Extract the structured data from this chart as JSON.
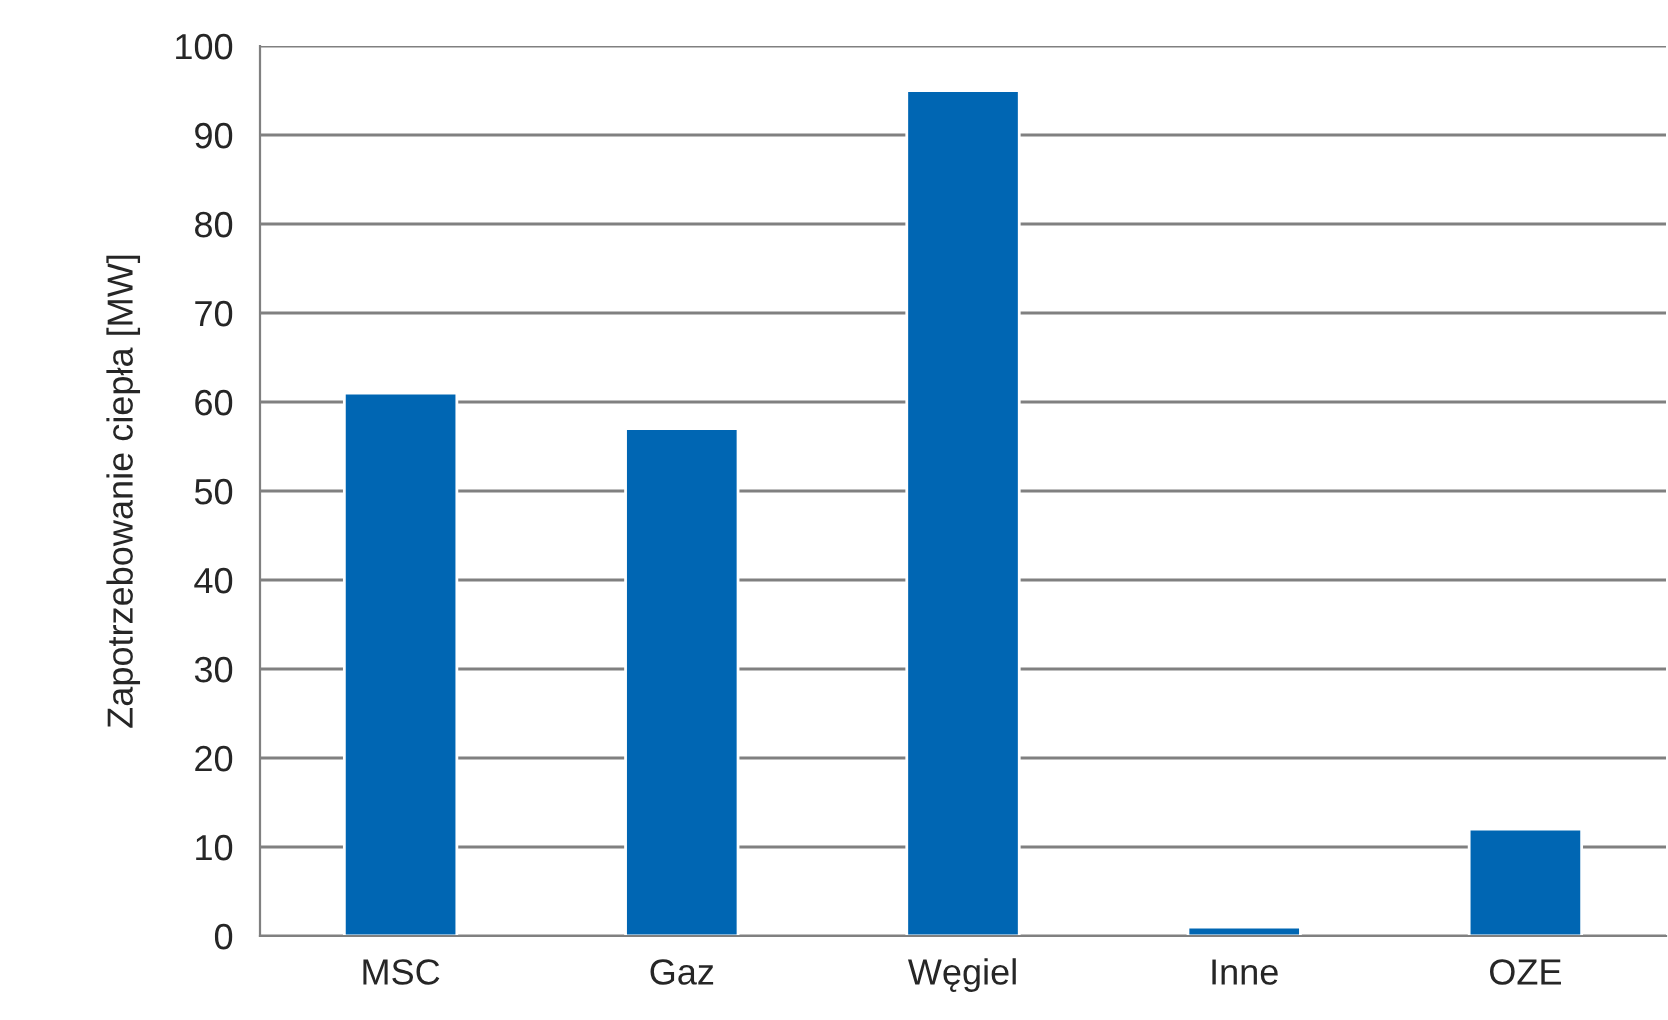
{
  "chart_data": {
    "type": "bar",
    "ylabel": "Zapotrzebowanie ciepła [MW]",
    "categories": [
      "MSC",
      "Gaz",
      "Węgiel",
      "Inne",
      "OZE"
    ],
    "series": [
      {
        "color": "#0066b3",
        "values": [
          61,
          57,
          95,
          1,
          12
        ]
      }
    ],
    "ylim": [
      0,
      100
    ],
    "yticks": [
      0,
      10,
      20,
      30,
      40,
      50,
      60,
      70,
      80,
      90,
      100
    ],
    "grid": "y",
    "legend": false
  }
}
